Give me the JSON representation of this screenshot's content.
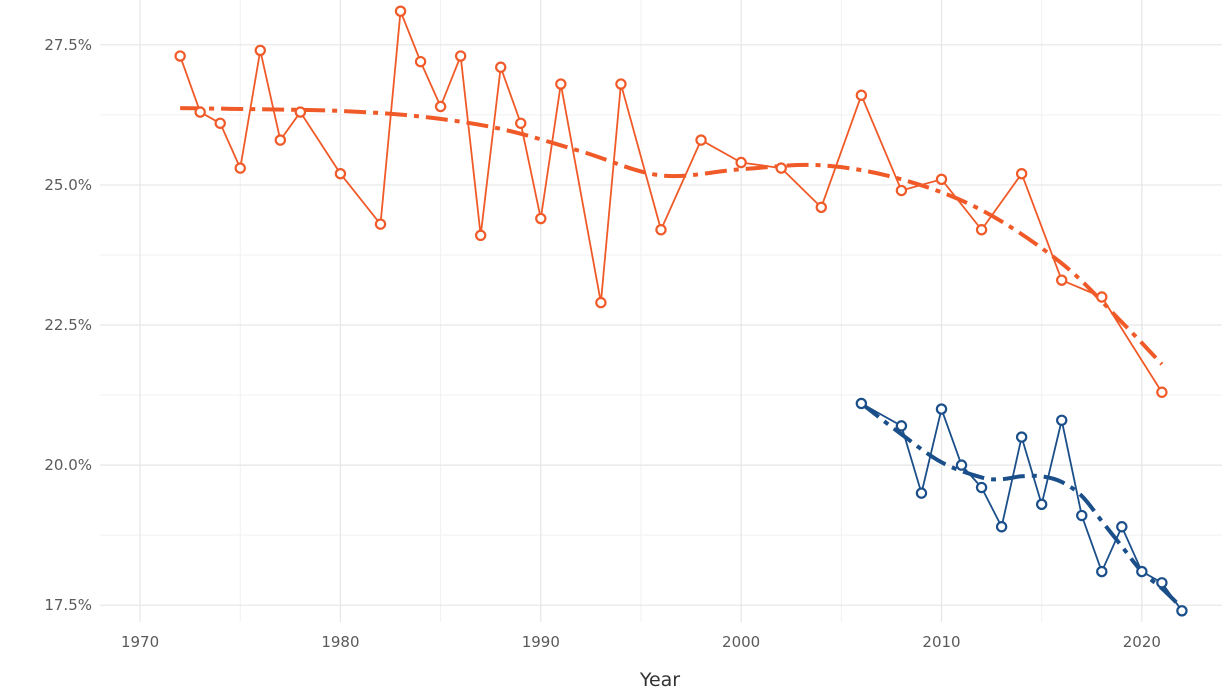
{
  "chart_data": {
    "type": "line",
    "title": "",
    "xlabel": "Year",
    "ylabel": "",
    "xlim": [
      1968,
      2024
    ],
    "ylim": [
      17.2,
      28.3
    ],
    "x_ticks": [
      1970,
      1980,
      1990,
      2000,
      2010,
      2020
    ],
    "y_ticks": [
      17.5,
      20.0,
      22.5,
      25.0,
      27.5
    ],
    "y_tick_labels": [
      "17.5%",
      "20.0%",
      "22.5%",
      "25.0%",
      "27.5%"
    ],
    "grid": true,
    "legend": "none",
    "series": [
      {
        "color": "#f05a28",
        "x": [
          1972,
          1973,
          1974,
          1975,
          1976,
          1977,
          1978,
          1980,
          1982,
          1983,
          1984,
          1985,
          1986,
          1987,
          1988,
          1989,
          1990,
          1991,
          1993,
          1994,
          1996,
          1998,
          2000,
          2002,
          2004,
          2006,
          2008,
          2010,
          2012,
          2014,
          2016,
          2018,
          2021
        ],
        "values": [
          27.3,
          26.3,
          26.1,
          25.3,
          27.4,
          25.8,
          26.3,
          25.2,
          24.3,
          28.1,
          27.2,
          26.4,
          27.3,
          24.1,
          27.1,
          26.1,
          24.4,
          26.8,
          22.9,
          26.8,
          24.2,
          25.8,
          25.4,
          25.3,
          24.6,
          26.6,
          24.9,
          25.1,
          24.2,
          25.2,
          23.3,
          23.0,
          21.3
        ],
        "trend": {
          "x": [
            1972,
            1976,
            1980,
            1984,
            1988,
            1992,
            1996,
            2000,
            2004,
            2008,
            2012,
            2016,
            2019,
            2021
          ],
          "values": [
            26.37,
            26.35,
            26.32,
            26.22,
            26.0,
            25.6,
            25.17,
            25.28,
            25.35,
            25.1,
            24.55,
            23.6,
            22.55,
            21.8
          ]
        }
      },
      {
        "color": "#1b4f8a",
        "x": [
          2006,
          2008,
          2009,
          2010,
          2011,
          2012,
          2013,
          2014,
          2015,
          2016,
          2017,
          2018,
          2019,
          2020,
          2021,
          2022
        ],
        "values": [
          21.1,
          20.7,
          19.5,
          21.0,
          20.0,
          19.6,
          18.9,
          20.5,
          19.3,
          20.8,
          19.1,
          18.1,
          18.9,
          18.1,
          17.9,
          17.4
        ],
        "trend": {
          "x": [
            2006,
            2008,
            2010,
            2012,
            2013,
            2014,
            2015,
            2016,
            2017,
            2018,
            2019,
            2020,
            2021,
            2022
          ],
          "values": [
            21.1,
            20.55,
            20.05,
            19.78,
            19.75,
            19.8,
            19.8,
            19.7,
            19.45,
            19.0,
            18.55,
            18.1,
            17.8,
            17.45
          ]
        }
      }
    ]
  }
}
